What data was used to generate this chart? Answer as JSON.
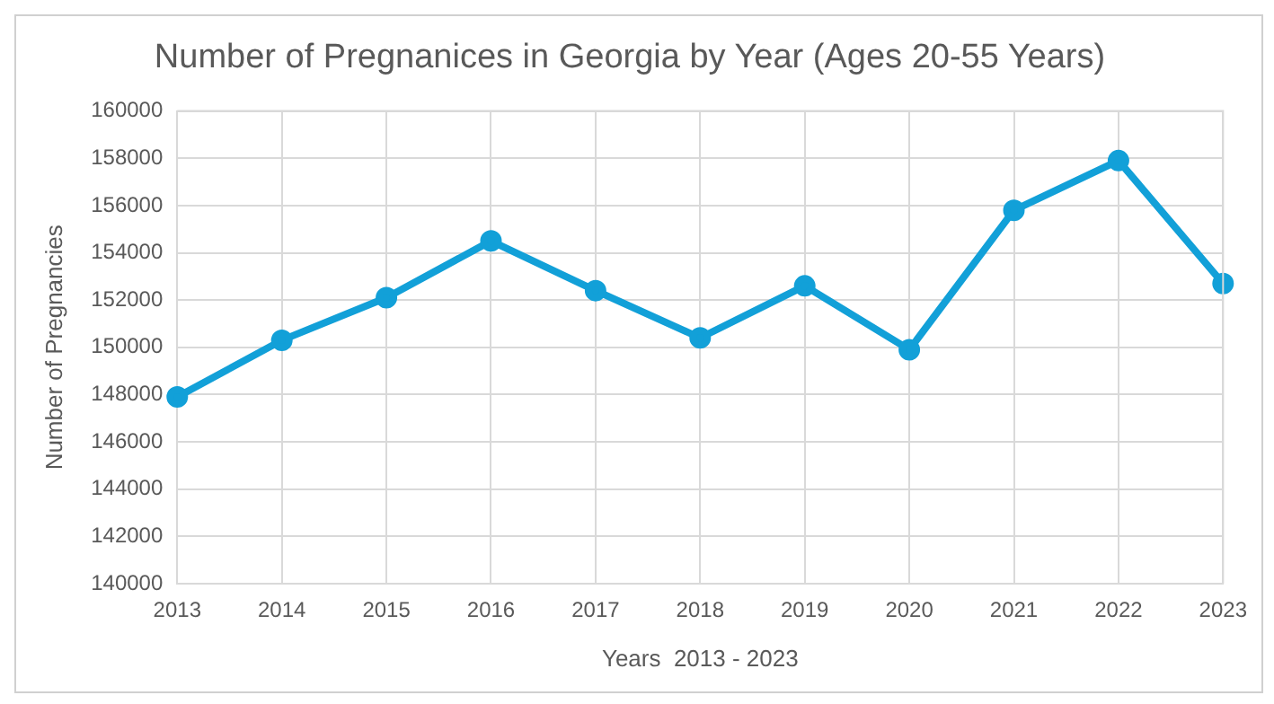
{
  "chart_data": {
    "type": "line",
    "title": "Number of Pregnanices in Georgia by Year (Ages 20-55 Years)",
    "xlabel": "Years  2013 - 2023",
    "ylabel": "Number of Pregnancies",
    "categories": [
      "2013",
      "2014",
      "2015",
      "2016",
      "2017",
      "2018",
      "2019",
      "2020",
      "2021",
      "2022",
      "2023"
    ],
    "series": [
      {
        "color": "#12a0d8",
        "values": [
          147900,
          150300,
          152100,
          154500,
          152400,
          150400,
          152600,
          149900,
          155800,
          157900,
          152700
        ]
      }
    ],
    "ylim": [
      140000,
      160000
    ],
    "yticks": [
      140000,
      142000,
      144000,
      146000,
      148000,
      150000,
      152000,
      154000,
      156000,
      158000,
      160000
    ],
    "grid": true,
    "legend": false,
    "marker": "circle",
    "line_style": "solid"
  }
}
